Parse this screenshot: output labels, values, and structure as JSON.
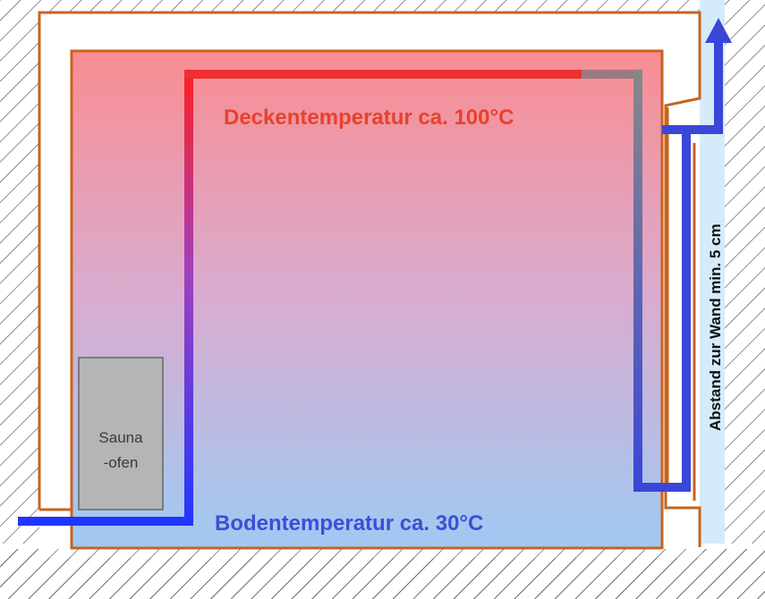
{
  "labels": {
    "ceiling_temperature": "Deckentemperatur ca. 100°C",
    "floor_temperature": "Bodentemperatur ca. 30°C",
    "wall_distance": "Abstand zur Wand min. 5 cm",
    "oven_line1": "Sauna",
    "oven_line2": "-ofen"
  },
  "colors": {
    "hot": "#f4585e",
    "cold": "#8cc2f2",
    "wall_outline": "#c8631e",
    "ceiling_text": "#e8412b",
    "floor_text": "#3b4fd6",
    "arrow_blue": "#3a46d8",
    "oven_fill": "#b5b5b5",
    "air_gap": "#d6ebfa"
  }
}
